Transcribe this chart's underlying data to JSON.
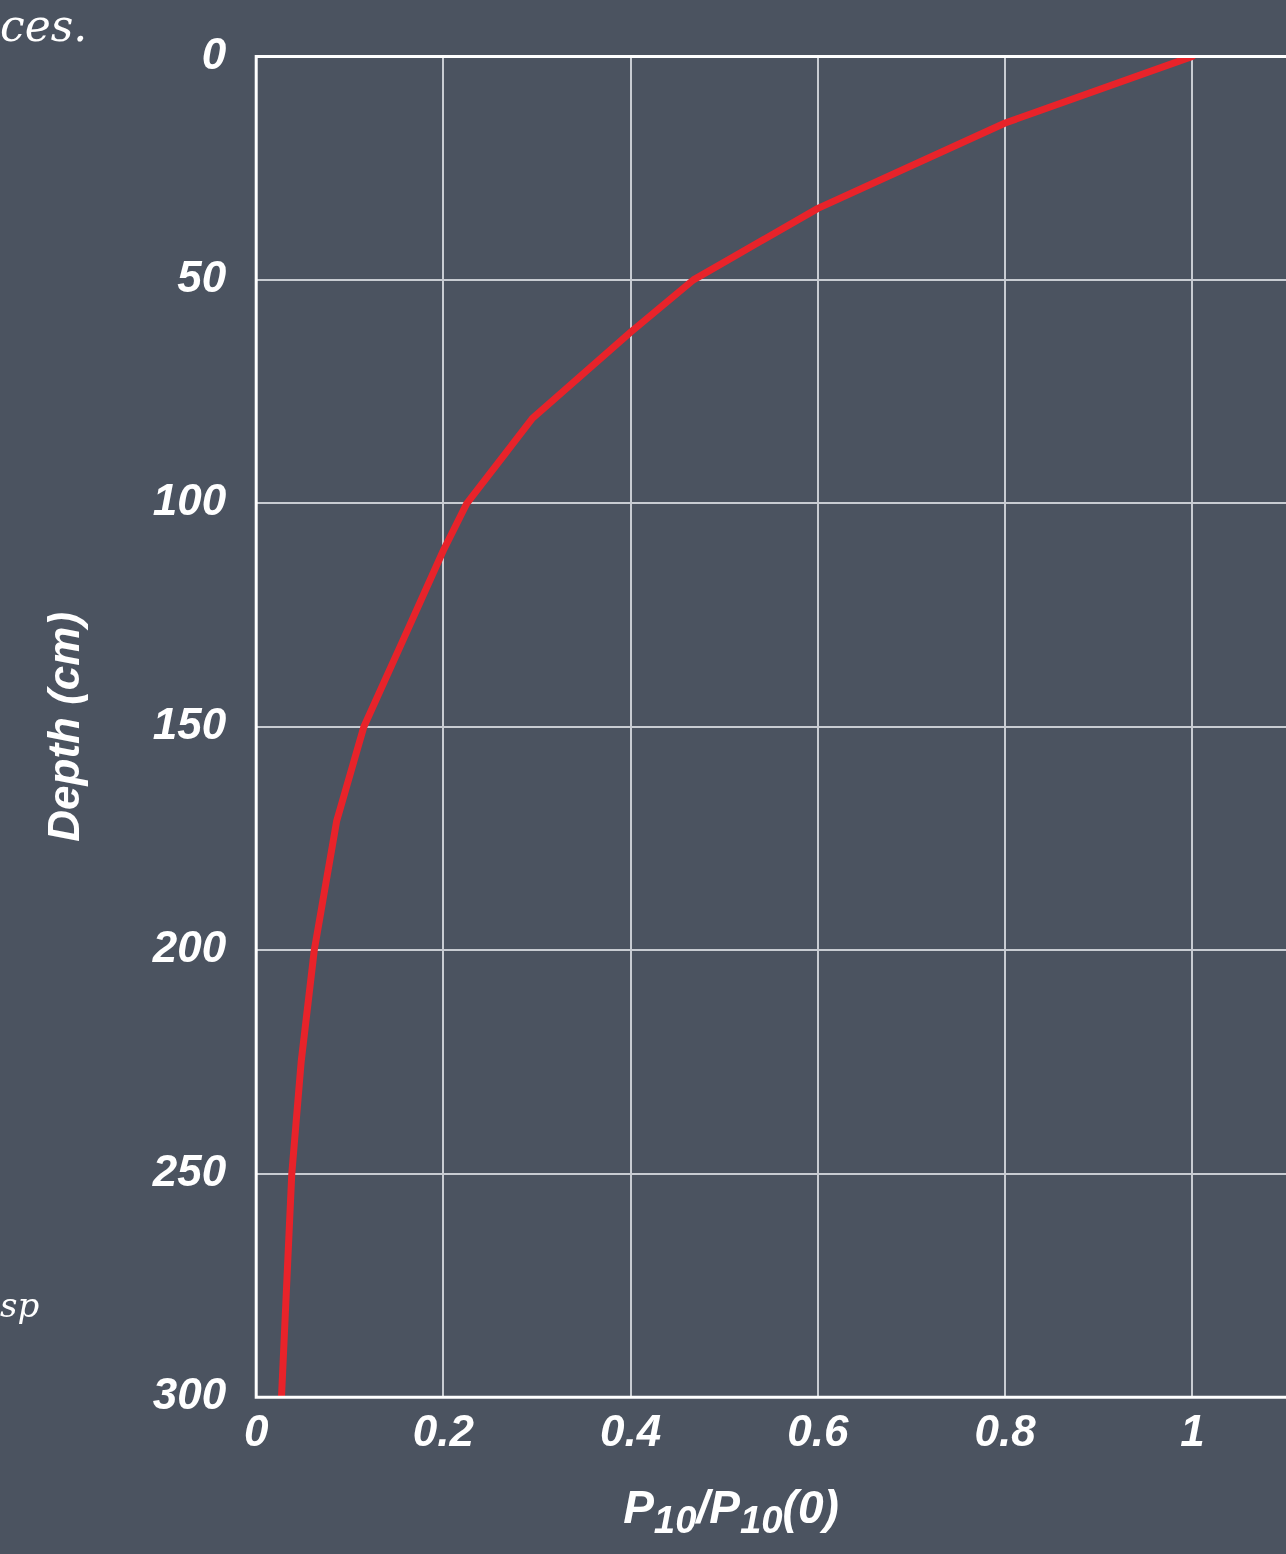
{
  "chart_data": {
    "type": "line",
    "xlabel": "P$_{10}$/P$_{10}$(0)",
    "ylabel": "Depth (cm)",
    "annotations": [
      "ces.",
      "sp"
    ],
    "x": [
      1,
      0.8,
      0.6,
      0.467,
      0.4,
      0.295,
      0.225,
      0.2,
      0.156,
      0.115,
      0.086,
      0.062,
      0.048,
      0.038,
      0.027
    ],
    "series": [
      {
        "color": "#e8232a",
        "values": [
          0,
          14.9,
          34,
          50,
          61.7,
          81,
          100,
          110.5,
          131,
          150,
          171,
          200,
          225,
          250,
          300
        ]
      }
    ],
    "xlim": [
      0,
      1.1
    ],
    "xticks": [
      0,
      0.2,
      0.4,
      0.6,
      0.8,
      1
    ],
    "ylim": [
      300,
      0
    ],
    "yticks": [
      0,
      50,
      100,
      150,
      200,
      250,
      300
    ],
    "grid": true,
    "legend": false,
    "marker": "none",
    "line_style": "solid"
  }
}
